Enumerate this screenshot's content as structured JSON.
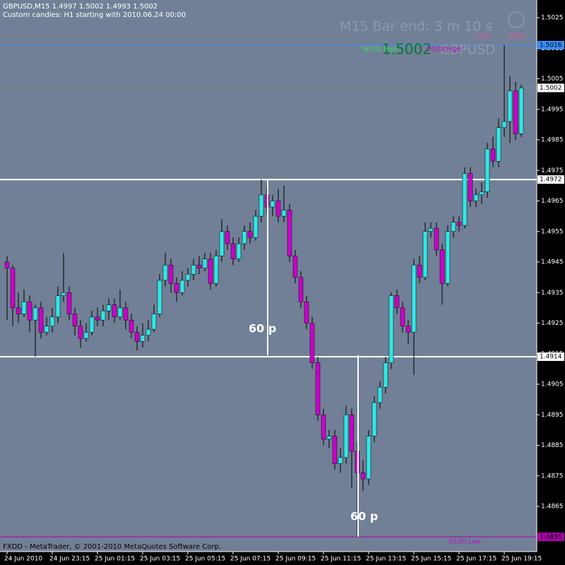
{
  "chart_data": {
    "type": "candlestick",
    "title": "GBPUSD,M15  1.4997 1.5002 1.4993 1.5002",
    "subtitle": "Custom candles: H1 starting with 2010.06.24 00:00",
    "timer": "M15 Bar end: 3 m 10 s",
    "spread": "141",
    "percent": "88%",
    "price_display": "1.5002",
    "symbol": "GBPUSD",
    "labels": [
      "W1(0) High",
      "D1(0) High",
      "D1(0) Low"
    ],
    "annotations": [
      "60 p",
      "60 p"
    ],
    "footer": "FXDD - MetaTrader, © 2001-2010 MetaQuotes Software Corp.",
    "background": "#718096",
    "up_color": "#33e6e6",
    "down_color": "#cc00cc",
    "ylim": [
      1.4847,
      1.5032
    ],
    "yticks": [
      1.5025,
      1.5015,
      1.5005,
      1.4995,
      1.4985,
      1.4975,
      1.4965,
      1.4955,
      1.4945,
      1.4935,
      1.4925,
      1.4915,
      1.4905,
      1.4895,
      1.4885,
      1.4875,
      1.4865
    ],
    "levels": [
      {
        "value": 1.5016,
        "color": "#3a8eff"
      },
      {
        "value": 1.5002,
        "color": "#8a8a8a"
      },
      {
        "value": 1.4972,
        "color": "#ffffff"
      },
      {
        "value": 1.4914,
        "color": "#ffffff"
      },
      {
        "value": 1.4855,
        "color": "#aa00aa"
      }
    ],
    "categories": [
      "24 Jun 2010",
      null,
      null,
      null,
      null,
      null,
      null,
      null,
      "24 Jun 23:15",
      null,
      null,
      null,
      null,
      null,
      null,
      null,
      "25 Jun 01:15",
      null,
      null,
      null,
      null,
      null,
      null,
      null,
      "25 Jun 03:15",
      null,
      null,
      null,
      null,
      null,
      null,
      null,
      "25 Jun 05:15",
      null,
      null,
      null,
      null,
      null,
      null,
      null,
      "25 Jun 07:15",
      null,
      null,
      null,
      null,
      null,
      null,
      null,
      "25 Jun 09:15",
      null,
      null,
      null,
      null,
      null,
      null,
      null,
      "25 Jun 11:15",
      null,
      null,
      null,
      null,
      null,
      null,
      null,
      "25 Jun 13:15",
      null,
      null,
      null,
      null,
      null,
      null,
      null,
      "25 Jun 15:15",
      null,
      null,
      null,
      null,
      null,
      null,
      null,
      "25 Jun 17:15",
      null,
      null,
      null,
      null,
      null,
      null,
      null,
      "25 Jun 19:15",
      null,
      null,
      null
    ],
    "candles": [
      [
        1.4945,
        1.4947,
        1.4926,
        1.4943
      ],
      [
        1.4943,
        1.4944,
        1.4924,
        1.493
      ],
      [
        1.493,
        1.4935,
        1.4925,
        1.4928
      ],
      [
        1.4928,
        1.4936,
        1.4927,
        1.4932
      ],
      [
        1.4932,
        1.4934,
        1.4922,
        1.4926
      ],
      [
        1.4926,
        1.4931,
        1.4914,
        1.493
      ],
      [
        1.493,
        1.4932,
        1.492,
        1.4922
      ],
      [
        1.4922,
        1.4927,
        1.4921,
        1.4924
      ],
      [
        1.4924,
        1.493,
        1.4922,
        1.4927
      ],
      [
        1.4927,
        1.4937,
        1.4925,
        1.4934
      ],
      [
        1.4934,
        1.4948,
        1.4932,
        1.4935
      ],
      [
        1.4935,
        1.4937,
        1.4926,
        1.4928
      ],
      [
        1.4928,
        1.493,
        1.4921,
        1.4924
      ],
      [
        1.4924,
        1.4926,
        1.4917,
        1.492
      ],
      [
        1.492,
        1.4925,
        1.4919,
        1.4922
      ],
      [
        1.4922,
        1.4929,
        1.4921,
        1.4927
      ],
      [
        1.4927,
        1.493,
        1.4924,
        1.4926
      ],
      [
        1.4926,
        1.4931,
        1.4924,
        1.4929
      ],
      [
        1.4929,
        1.4933,
        1.4926,
        1.4931
      ],
      [
        1.4931,
        1.4933,
        1.4925,
        1.4927
      ],
      [
        1.4927,
        1.4936,
        1.4926,
        1.493
      ],
      [
        1.493,
        1.4932,
        1.4923,
        1.4926
      ],
      [
        1.4926,
        1.4928,
        1.492,
        1.4922
      ],
      [
        1.4922,
        1.4924,
        1.4916,
        1.4919
      ],
      [
        1.4919,
        1.4925,
        1.4917,
        1.4921
      ],
      [
        1.4921,
        1.4926,
        1.4919,
        1.4923
      ],
      [
        1.4923,
        1.4931,
        1.4922,
        1.4928
      ],
      [
        1.4928,
        1.4941,
        1.4927,
        1.4939
      ],
      [
        1.4939,
        1.4948,
        1.4937,
        1.4944
      ],
      [
        1.4944,
        1.4946,
        1.4935,
        1.4938
      ],
      [
        1.4938,
        1.494,
        1.4932,
        1.4935
      ],
      [
        1.4935,
        1.4942,
        1.4934,
        1.4939
      ],
      [
        1.4939,
        1.4943,
        1.4937,
        1.4941
      ],
      [
        1.4941,
        1.4946,
        1.4939,
        1.4944
      ],
      [
        1.4944,
        1.4947,
        1.4941,
        1.4943
      ],
      [
        1.4943,
        1.4948,
        1.4942,
        1.4946
      ],
      [
        1.4946,
        1.4948,
        1.4936,
        1.4938
      ],
      [
        1.4938,
        1.4949,
        1.4937,
        1.4947
      ],
      [
        1.4947,
        1.4959,
        1.4945,
        1.4955
      ],
      [
        1.4955,
        1.4957,
        1.4949,
        1.4951
      ],
      [
        1.4951,
        1.4953,
        1.4944,
        1.4946
      ],
      [
        1.4946,
        1.4953,
        1.4945,
        1.4951
      ],
      [
        1.4951,
        1.4957,
        1.4949,
        1.4955
      ],
      [
        1.4955,
        1.4958,
        1.4951,
        1.4953
      ],
      [
        1.4953,
        1.4962,
        1.4952,
        1.496
      ],
      [
        1.496,
        1.4972,
        1.4958,
        1.4967
      ],
      [
        1.4967,
        1.497,
        1.4961,
        1.4963
      ],
      [
        1.4963,
        1.4967,
        1.496,
        1.4965
      ],
      [
        1.4965,
        1.4969,
        1.4958,
        1.496
      ],
      [
        1.496,
        1.497,
        1.4958,
        1.4962
      ],
      [
        1.4962,
        1.4964,
        1.4945,
        1.4947
      ],
      [
        1.4947,
        1.4949,
        1.4938,
        1.494
      ],
      [
        1.494,
        1.4942,
        1.493,
        1.4932
      ],
      [
        1.4932,
        1.4934,
        1.4923,
        1.4925
      ],
      [
        1.4925,
        1.4927,
        1.491,
        1.4912
      ],
      [
        1.4912,
        1.4914,
        1.4893,
        1.4895
      ],
      [
        1.4895,
        1.4897,
        1.4885,
        1.4887
      ],
      [
        1.4887,
        1.489,
        1.4884,
        1.4888
      ],
      [
        1.4888,
        1.489,
        1.4877,
        1.4879
      ],
      [
        1.4879,
        1.4884,
        1.4876,
        1.4881
      ],
      [
        1.4881,
        1.4898,
        1.4879,
        1.4895
      ],
      [
        1.4895,
        1.4897,
        1.4871,
        1.4883
      ],
      [
        1.4883,
        1.4886,
        1.4855,
        1.4876
      ],
      [
        1.4876,
        1.488,
        1.487,
        1.4874
      ],
      [
        1.4874,
        1.489,
        1.4872,
        1.4888
      ],
      [
        1.4888,
        1.4901,
        1.4886,
        1.4899
      ],
      [
        1.4899,
        1.4906,
        1.4897,
        1.4904
      ],
      [
        1.4904,
        1.4914,
        1.4902,
        1.4912
      ],
      [
        1.4912,
        1.4935,
        1.491,
        1.4934
      ],
      [
        1.4934,
        1.4936,
        1.4928,
        1.493
      ],
      [
        1.493,
        1.4932,
        1.4922,
        1.4924
      ],
      [
        1.4924,
        1.4926,
        1.4918,
        1.4922
      ],
      [
        1.4922,
        1.4946,
        1.4908,
        1.4944
      ],
      [
        1.4944,
        1.4947,
        1.4938,
        1.494
      ],
      [
        1.494,
        1.4958,
        1.4939,
        1.4955
      ],
      [
        1.4955,
        1.4958,
        1.4953,
        1.4956
      ],
      [
        1.4956,
        1.4958,
        1.4947,
        1.4949
      ],
      [
        1.4949,
        1.4951,
        1.4931,
        1.4938
      ],
      [
        1.4938,
        1.4957,
        1.4937,
        1.4955
      ],
      [
        1.4955,
        1.496,
        1.4953,
        1.4958
      ],
      [
        1.4958,
        1.496,
        1.4955,
        1.4957
      ],
      [
        1.4957,
        1.4976,
        1.4956,
        1.4974
      ],
      [
        1.4974,
        1.4976,
        1.4963,
        1.4965
      ],
      [
        1.4965,
        1.4969,
        1.4963,
        1.4967
      ],
      [
        1.4967,
        1.4971,
        1.4964,
        1.4968
      ],
      [
        1.4968,
        1.4984,
        1.4966,
        1.4982
      ],
      [
        1.4982,
        1.4986,
        1.4976,
        1.4978
      ],
      [
        1.4978,
        1.4992,
        1.4976,
        1.4989
      ],
      [
        1.4989,
        1.5016,
        1.4986,
        1.4991
      ],
      [
        1.4991,
        1.5006,
        1.4984,
        1.5001
      ],
      [
        1.5001,
        1.5004,
        1.4985,
        1.4987
      ],
      [
        1.4987,
        1.5003,
        1.4986,
        1.5002
      ]
    ]
  }
}
